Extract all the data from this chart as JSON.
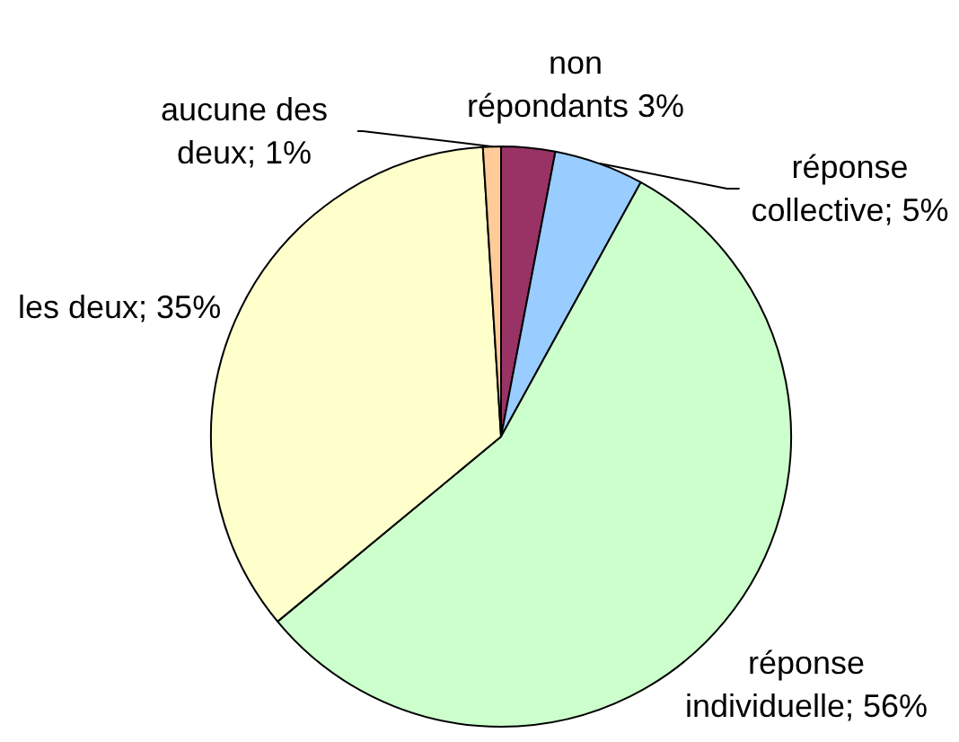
{
  "chart_data": {
    "type": "pie",
    "categories": [
      "non répondants",
      "réponse collective",
      "réponse individuelle",
      "les deux",
      "aucune des deux"
    ],
    "values": [
      3,
      5,
      56,
      35,
      1
    ],
    "colors": [
      "#993366",
      "#99ccff",
      "#ccffcc",
      "#ffffcc",
      "#ffcc99"
    ],
    "value_labels": [
      "3%",
      "5%",
      "56%",
      "35%",
      "1%"
    ]
  }
}
